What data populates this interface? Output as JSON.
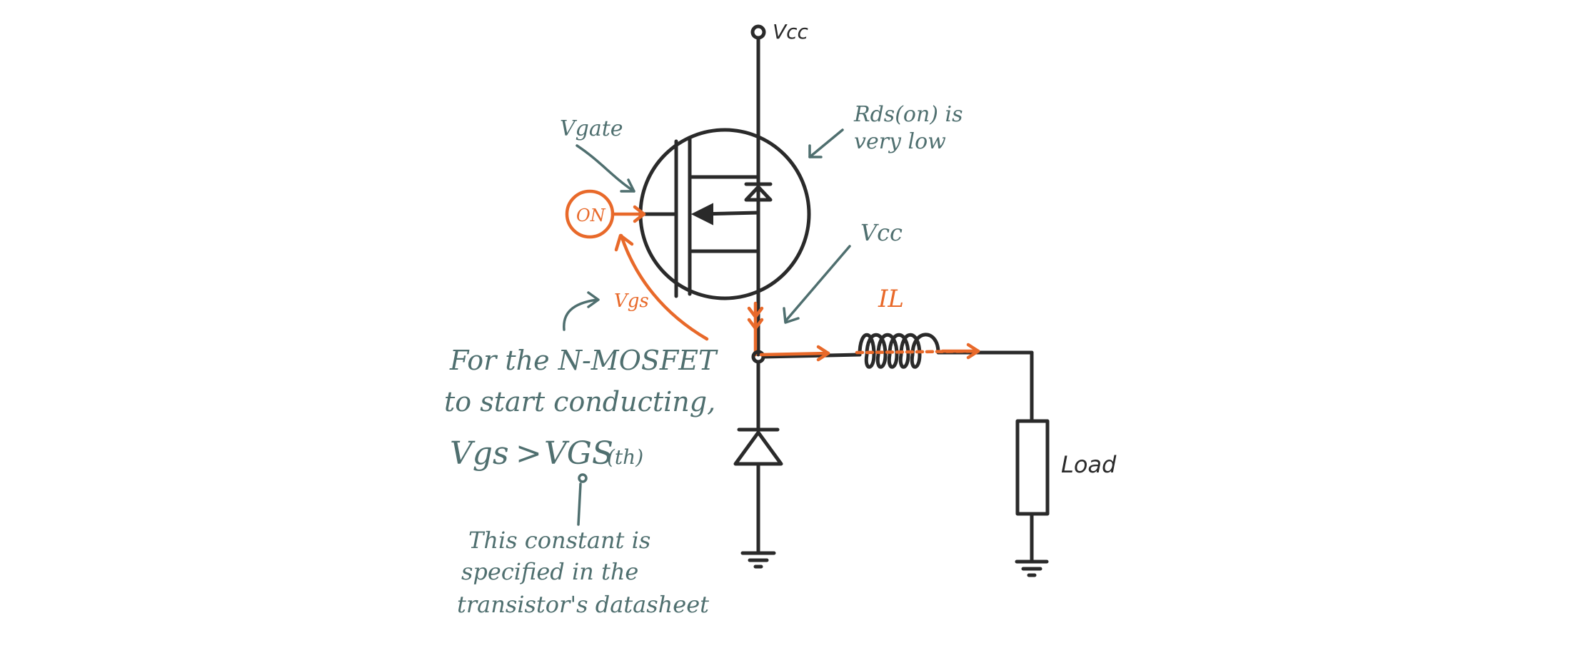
{
  "colors": {
    "ink": "#2a2a2a",
    "accent": "#e8692a",
    "note": "#4f6f6f"
  },
  "labels": {
    "vcc_top": "Vcc",
    "vgate": "Vgate",
    "on": "ON",
    "rds_line1": "Rds(on) is",
    "rds_line2": "very low",
    "vcc_side": "Vcc",
    "il": "IL",
    "vgs_small": "Vgs",
    "load": "Load"
  },
  "notes": {
    "line1": "For the N-MOSFET",
    "line2": "to  start conducting,",
    "condition_left": "Vgs",
    "condition_op": ">",
    "condition_right": "VGS",
    "condition_sub": "(th)",
    "footnote_line1": "This constant is",
    "footnote_line2": "specified in the",
    "footnote_line3": "transistor's datasheet"
  },
  "icons": [
    "mosfet-symbol",
    "diode-symbol",
    "inductor-symbol",
    "resistor-symbol",
    "ground-symbol"
  ]
}
